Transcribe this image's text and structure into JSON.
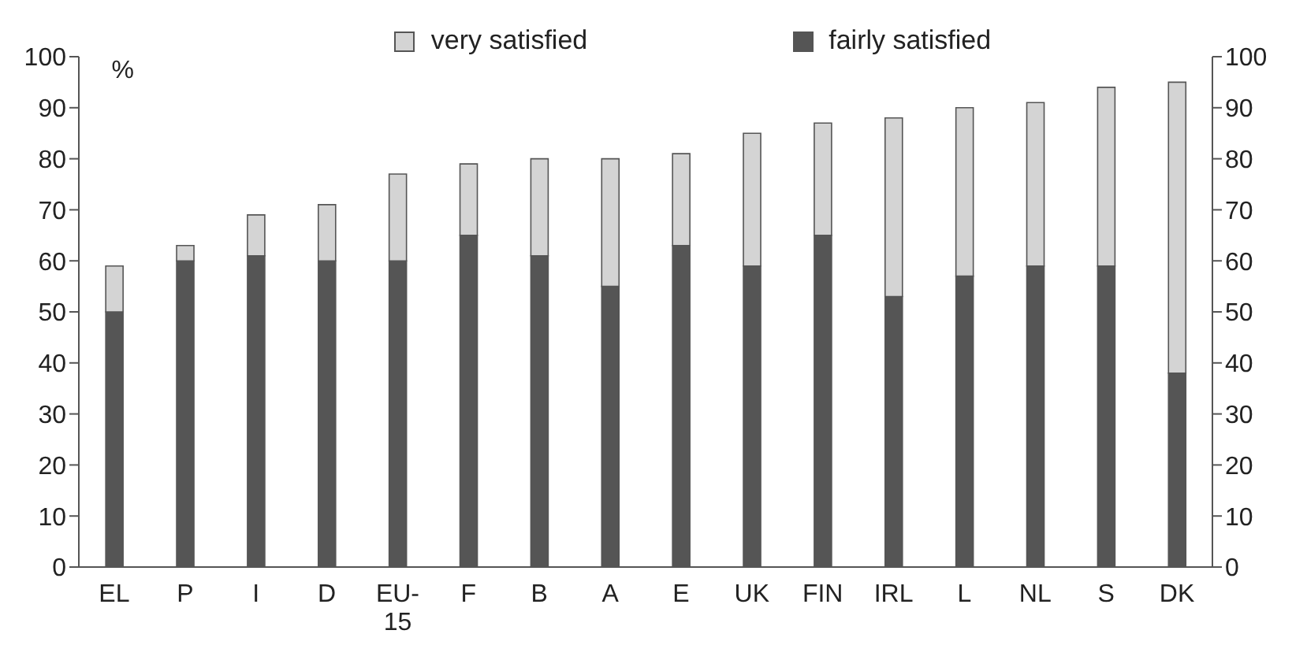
{
  "chart_data": {
    "type": "bar",
    "stacked": true,
    "ylabel": "%",
    "categories": [
      "EL",
      "P",
      "I",
      "D",
      "EU-15",
      "F",
      "B",
      "A",
      "E",
      "UK",
      "FIN",
      "IRL",
      "L",
      "NL",
      "S",
      "DK"
    ],
    "series": [
      {
        "name": "fairly satisfied",
        "color": "#555555",
        "values": [
          50,
          60,
          61,
          60,
          60,
          65,
          61,
          55,
          63,
          59,
          65,
          53,
          57,
          59,
          59,
          38
        ]
      },
      {
        "name": "very satisfied",
        "color": "#d4d4d4",
        "values": [
          9,
          3,
          8,
          11,
          17,
          14,
          19,
          25,
          18,
          26,
          22,
          35,
          33,
          32,
          35,
          57
        ]
      }
    ],
    "ylim": [
      0,
      100
    ],
    "yticks": [
      0,
      10,
      20,
      30,
      40,
      50,
      60,
      70,
      80,
      90,
      100
    ],
    "y2lim": [
      0,
      100
    ],
    "y2ticks": [
      0,
      10,
      20,
      30,
      40,
      50,
      60,
      70,
      80,
      90,
      100
    ],
    "grid": false,
    "legend": "top"
  }
}
